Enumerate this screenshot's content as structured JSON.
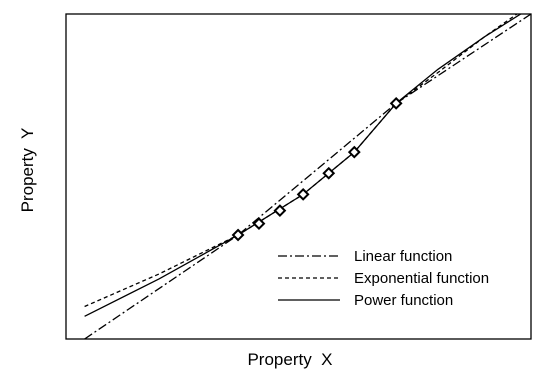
{
  "chart_data": {
    "type": "line",
    "xlabel": "Property  X",
    "ylabel": "Property  Y",
    "xlim": [
      0,
      10
    ],
    "ylim": [
      0,
      10
    ],
    "grid": false,
    "legend_position": "bottom-right",
    "points": {
      "style": "diamond",
      "x": [
        3.7,
        4.15,
        4.6,
        5.1,
        5.65,
        6.2,
        7.1
      ],
      "y": [
        3.2,
        3.55,
        3.95,
        4.45,
        5.1,
        5.75,
        7.25
      ]
    },
    "series": [
      {
        "name": "Linear function",
        "style": "dash-dot",
        "x": [
          0.4,
          3.7,
          7.1,
          10.0
        ],
        "y": [
          0.0,
          3.2,
          7.25,
          10.0
        ]
      },
      {
        "name": "Exponential function",
        "style": "dashed",
        "x": [
          0.4,
          2.0,
          3.7,
          5.1,
          6.2,
          7.1,
          8.0,
          9.0,
          9.7
        ],
        "y": [
          1.0,
          2.0,
          3.2,
          4.45,
          5.75,
          7.25,
          8.2,
          9.3,
          10.0
        ]
      },
      {
        "name": "Power function",
        "style": "solid",
        "x": [
          0.4,
          2.0,
          3.7,
          5.1,
          6.2,
          7.1,
          8.0,
          9.0,
          10.0
        ],
        "y": [
          0.7,
          1.85,
          3.2,
          4.45,
          5.75,
          7.25,
          8.3,
          9.3,
          10.2
        ]
      }
    ]
  }
}
